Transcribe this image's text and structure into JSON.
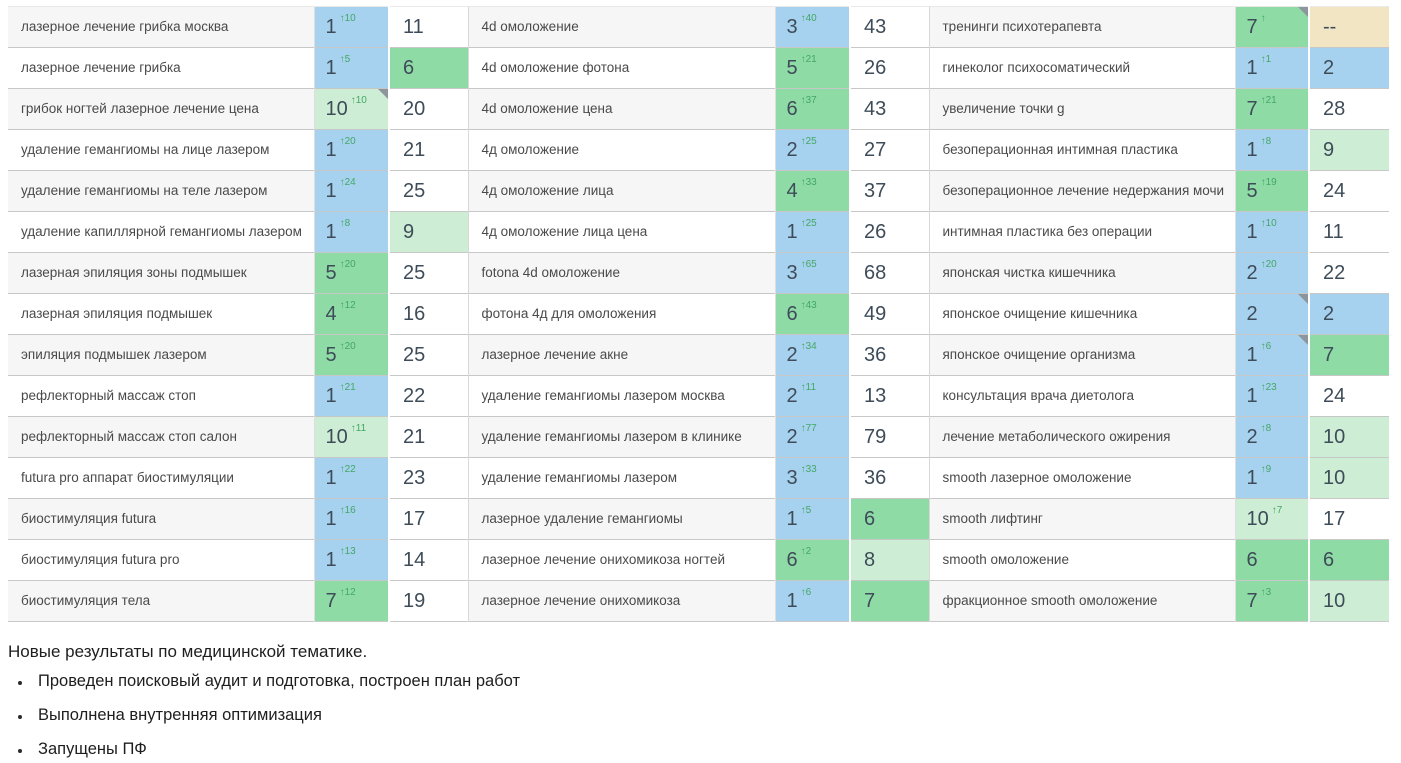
{
  "colors": {
    "blue": "#a7d2ef",
    "green": "#8fdba6",
    "lightgreen": "#cdeed4",
    "tan": "#f1e5c3",
    "delta_green": "#43a764",
    "number_text": "#3e4c59",
    "keyword_text": "#4a4a4a"
  },
  "table": {
    "groups": [
      {
        "rows": [
          {
            "keyword": "лазерное лечение грибка москва",
            "pos": "1",
            "delta": "↑10",
            "pos_color": "blue",
            "value": "11",
            "value_color": "white",
            "corner": false
          },
          {
            "keyword": "лазерное лечение грибка",
            "pos": "1",
            "delta": "↑5",
            "pos_color": "blue",
            "value": "6",
            "value_color": "green",
            "corner": false
          },
          {
            "keyword": "грибок ногтей лазерное лечение цена",
            "pos": "10",
            "delta": "↑10",
            "pos_color": "lightgreen",
            "value": "20",
            "value_color": "white",
            "corner": true
          },
          {
            "keyword": "удаление гемангиомы на лице лазером",
            "pos": "1",
            "delta": "↑20",
            "pos_color": "blue",
            "value": "21",
            "value_color": "white",
            "corner": false
          },
          {
            "keyword": "удаление гемангиомы на теле лазером",
            "pos": "1",
            "delta": "↑24",
            "pos_color": "blue",
            "value": "25",
            "value_color": "white",
            "corner": false
          },
          {
            "keyword": "удаление капиллярной гемангиомы лазером",
            "pos": "1",
            "delta": "↑8",
            "pos_color": "blue",
            "value": "9",
            "value_color": "lightgreen",
            "corner": false
          },
          {
            "keyword": "лазерная эпиляция зоны подмышек",
            "pos": "5",
            "delta": "↑20",
            "pos_color": "green",
            "value": "25",
            "value_color": "white",
            "corner": false
          },
          {
            "keyword": "лазерная эпиляция подмышек",
            "pos": "4",
            "delta": "↑12",
            "pos_color": "green",
            "value": "16",
            "value_color": "white",
            "corner": false
          },
          {
            "keyword": "эпиляция подмышек лазером",
            "pos": "5",
            "delta": "↑20",
            "pos_color": "green",
            "value": "25",
            "value_color": "white",
            "corner": false
          },
          {
            "keyword": "рефлекторный массаж стоп",
            "pos": "1",
            "delta": "↑21",
            "pos_color": "blue",
            "value": "22",
            "value_color": "white",
            "corner": false
          },
          {
            "keyword": "рефлекторный массаж стоп салон",
            "pos": "10",
            "delta": "↑11",
            "pos_color": "lightgreen",
            "value": "21",
            "value_color": "white",
            "corner": false
          },
          {
            "keyword": "futura pro аппарат биостимуляции",
            "pos": "1",
            "delta": "↑22",
            "pos_color": "blue",
            "value": "23",
            "value_color": "white",
            "corner": false
          },
          {
            "keyword": "биостимуляция futura",
            "pos": "1",
            "delta": "↑16",
            "pos_color": "blue",
            "value": "17",
            "value_color": "white",
            "corner": false
          },
          {
            "keyword": "биостимуляция futura pro",
            "pos": "1",
            "delta": "↑13",
            "pos_color": "blue",
            "value": "14",
            "value_color": "white",
            "corner": false
          },
          {
            "keyword": "биостимуляция тела",
            "pos": "7",
            "delta": "↑12",
            "pos_color": "green",
            "value": "19",
            "value_color": "white",
            "corner": false
          }
        ]
      },
      {
        "rows": [
          {
            "keyword": "4d омоложение",
            "pos": "3",
            "delta": "↑40",
            "pos_color": "blue",
            "value": "43",
            "value_color": "white",
            "corner": false
          },
          {
            "keyword": "4d омоложение фотона",
            "pos": "5",
            "delta": "↑21",
            "pos_color": "green",
            "value": "26",
            "value_color": "white",
            "corner": false
          },
          {
            "keyword": "4d омоложение цена",
            "pos": "6",
            "delta": "↑37",
            "pos_color": "green",
            "value": "43",
            "value_color": "white",
            "corner": false
          },
          {
            "keyword": "4д омоложение",
            "pos": "2",
            "delta": "↑25",
            "pos_color": "blue",
            "value": "27",
            "value_color": "white",
            "corner": false
          },
          {
            "keyword": "4д омоложение лица",
            "pos": "4",
            "delta": "↑33",
            "pos_color": "green",
            "value": "37",
            "value_color": "white",
            "corner": false
          },
          {
            "keyword": "4д омоложение лица цена",
            "pos": "1",
            "delta": "↑25",
            "pos_color": "blue",
            "value": "26",
            "value_color": "white",
            "corner": false
          },
          {
            "keyword": "fotona 4d омоложение",
            "pos": "3",
            "delta": "↑65",
            "pos_color": "blue",
            "value": "68",
            "value_color": "white",
            "corner": false
          },
          {
            "keyword": "фотона 4д для омоложения",
            "pos": "6",
            "delta": "↑43",
            "pos_color": "green",
            "value": "49",
            "value_color": "white",
            "corner": false
          },
          {
            "keyword": "лазерное лечение акне",
            "pos": "2",
            "delta": "↑34",
            "pos_color": "blue",
            "value": "36",
            "value_color": "white",
            "corner": false
          },
          {
            "keyword": "удаление гемангиомы лазером москва",
            "pos": "2",
            "delta": "↑11",
            "pos_color": "blue",
            "value": "13",
            "value_color": "white",
            "corner": false
          },
          {
            "keyword": "удаление гемангиомы лазером в клинике",
            "pos": "2",
            "delta": "↑77",
            "pos_color": "blue",
            "value": "79",
            "value_color": "white",
            "corner": false
          },
          {
            "keyword": "удаление гемангиомы лазером",
            "pos": "3",
            "delta": "↑33",
            "pos_color": "blue",
            "value": "36",
            "value_color": "white",
            "corner": false
          },
          {
            "keyword": "лазерное удаление гемангиомы",
            "pos": "1",
            "delta": "↑5",
            "pos_color": "blue",
            "value": "6",
            "value_color": "green",
            "corner": false
          },
          {
            "keyword": "лазерное лечение онихомикоза ногтей",
            "pos": "6",
            "delta": "↑2",
            "pos_color": "green",
            "value": "8",
            "value_color": "lightgreen",
            "corner": false
          },
          {
            "keyword": "лазерное лечение онихомикоза",
            "pos": "1",
            "delta": "↑6",
            "pos_color": "blue",
            "value": "7",
            "value_color": "green",
            "corner": false
          }
        ]
      },
      {
        "rows": [
          {
            "keyword": "тренинги психотерапевта",
            "pos": "7",
            "delta": "↑",
            "pos_color": "green",
            "value": "--",
            "value_color": "tan",
            "corner": true
          },
          {
            "keyword": "гинеколог психосоматический",
            "pos": "1",
            "delta": "↑1",
            "pos_color": "blue",
            "value": "2",
            "value_color": "blue",
            "corner": false
          },
          {
            "keyword": "увеличение точки g",
            "pos": "7",
            "delta": "↑21",
            "pos_color": "green",
            "value": "28",
            "value_color": "white",
            "corner": false
          },
          {
            "keyword": "безоперационная интимная пластика",
            "pos": "1",
            "delta": "↑8",
            "pos_color": "blue",
            "value": "9",
            "value_color": "lightgreen",
            "corner": false
          },
          {
            "keyword": "безоперационное лечение недержания мочи",
            "pos": "5",
            "delta": "↑19",
            "pos_color": "green",
            "value": "24",
            "value_color": "white",
            "corner": false
          },
          {
            "keyword": "интимная пластика без операции",
            "pos": "1",
            "delta": "↑10",
            "pos_color": "blue",
            "value": "11",
            "value_color": "white",
            "corner": false
          },
          {
            "keyword": "японская чистка кишечника",
            "pos": "2",
            "delta": "↑20",
            "pos_color": "blue",
            "value": "22",
            "value_color": "white",
            "corner": false
          },
          {
            "keyword": "японское очищение кишечника",
            "pos": "2",
            "delta": "",
            "pos_color": "blue",
            "value": "2",
            "value_color": "blue",
            "corner": true
          },
          {
            "keyword": "японское очищение организма",
            "pos": "1",
            "delta": "↑6",
            "pos_color": "blue",
            "value": "7",
            "value_color": "green",
            "corner": true
          },
          {
            "keyword": "консультация врача диетолога",
            "pos": "1",
            "delta": "↑23",
            "pos_color": "blue",
            "value": "24",
            "value_color": "white",
            "corner": false
          },
          {
            "keyword": "лечение метаболического ожирения",
            "pos": "2",
            "delta": "↑8",
            "pos_color": "blue",
            "value": "10",
            "value_color": "lightgreen",
            "corner": false
          },
          {
            "keyword": "smooth лазерное омоложение",
            "pos": "1",
            "delta": "↑9",
            "pos_color": "blue",
            "value": "10",
            "value_color": "lightgreen",
            "corner": false
          },
          {
            "keyword": "smooth лифтинг",
            "pos": "10",
            "delta": "↑7",
            "pos_color": "lightgreen",
            "value": "17",
            "value_color": "white",
            "corner": false
          },
          {
            "keyword": "smooth омоложение",
            "pos": "6",
            "delta": "",
            "pos_color": "green",
            "value": "6",
            "value_color": "green",
            "corner": false
          },
          {
            "keyword": "фракционное smooth омоложение",
            "pos": "7",
            "delta": "↑3",
            "pos_color": "green",
            "value": "10",
            "value_color": "lightgreen",
            "corner": false
          }
        ]
      }
    ]
  },
  "summary": {
    "title": "Новые результаты по медицинской тематике.",
    "bullets": [
      "Проведен поисковый аудит и подготовка, построен план работ",
      "Выполнена внутренняя оптимизация",
      "Запущены ПФ"
    ]
  }
}
